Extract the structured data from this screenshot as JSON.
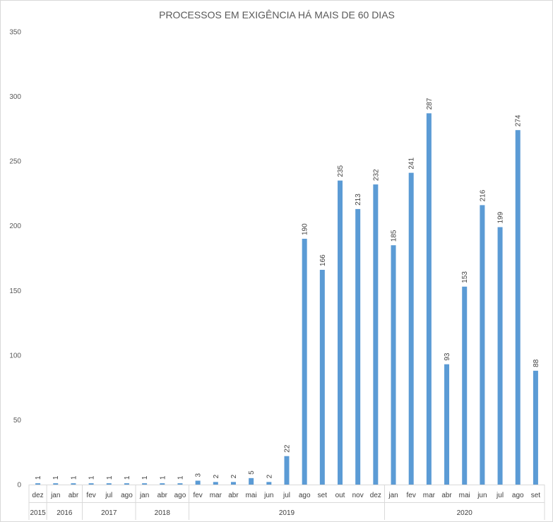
{
  "chart_data": {
    "type": "bar",
    "title": "PROCESSOS EM EXIGÊNCIA HÁ MAIS DE 60 DIAS",
    "ylim": [
      0,
      350
    ],
    "yticks": [
      0,
      50,
      100,
      150,
      200,
      250,
      300,
      350
    ],
    "grid": false,
    "bar_color": "#5B9BD5",
    "categories": [
      "dez",
      "jan",
      "abr",
      "fev",
      "jul",
      "ago",
      "jan",
      "abr",
      "ago",
      "fev",
      "mar",
      "abr",
      "mai",
      "jun",
      "jul",
      "ago",
      "set",
      "out",
      "nov",
      "dez",
      "jan",
      "fev",
      "mar",
      "abr",
      "mai",
      "jun",
      "jul",
      "ago",
      "set"
    ],
    "values": [
      1,
      1,
      1,
      1,
      1,
      1,
      1,
      1,
      1,
      3,
      2,
      2,
      5,
      2,
      22,
      190,
      166,
      235,
      213,
      232,
      185,
      241,
      287,
      93,
      153,
      216,
      199,
      274,
      88
    ],
    "year_groups": [
      {
        "label": "2015",
        "count": 1
      },
      {
        "label": "2016",
        "count": 2
      },
      {
        "label": "2017",
        "count": 3
      },
      {
        "label": "2018",
        "count": 3
      },
      {
        "label": "2019",
        "count": 11
      },
      {
        "label": "2020",
        "count": 9
      }
    ]
  }
}
